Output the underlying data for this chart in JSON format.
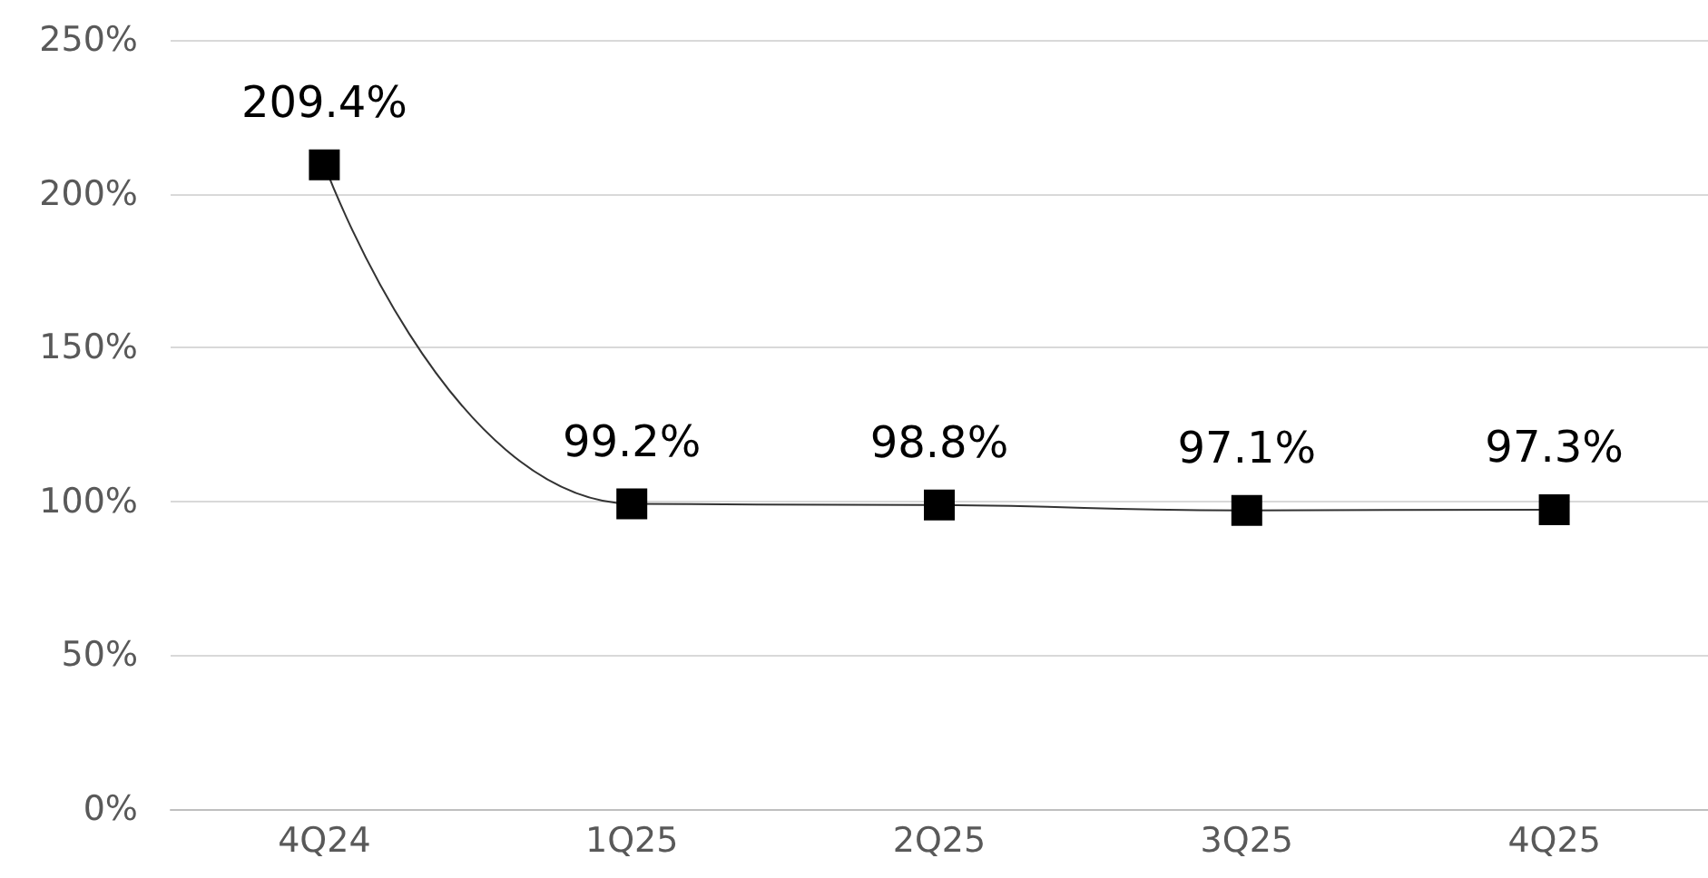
{
  "chart_data": {
    "type": "line",
    "categories": [
      "4Q24",
      "1Q25",
      "2Q25",
      "3Q25",
      "4Q25"
    ],
    "series": [
      {
        "color": "#000000",
        "values": [
          209.4,
          99.2,
          98.8,
          97.1,
          97.3
        ]
      }
    ],
    "value_labels": [
      "209.4%",
      "99.2%",
      "98.8%",
      "97.1%",
      "97.3%"
    ],
    "ylim": [
      0,
      250
    ],
    "yticks": [
      {
        "value": 0,
        "label": "0%"
      },
      {
        "value": 50,
        "label": "50%"
      },
      {
        "value": 100,
        "label": "100%"
      },
      {
        "value": 150,
        "label": "150%"
      },
      {
        "value": 200,
        "label": "200%"
      },
      {
        "value": 250,
        "label": "250%"
      }
    ],
    "grid": "y",
    "marker": "square",
    "line_style": "solid"
  }
}
